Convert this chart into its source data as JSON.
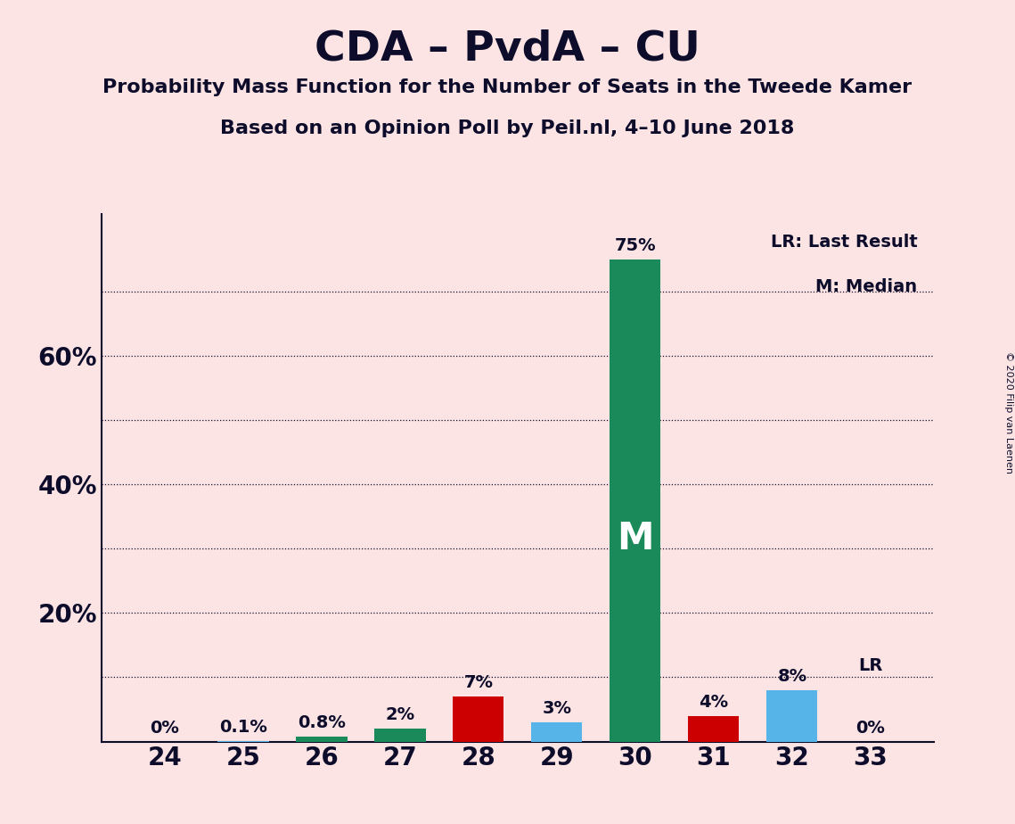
{
  "title": "CDA – PvdA – CU",
  "subtitle1": "Probability Mass Function for the Number of Seats in the Tweede Kamer",
  "subtitle2": "Based on an Opinion Poll by Peil.nl, 4–10 June 2018",
  "copyright": "© 2020 Filip van Laenen",
  "categories": [
    24,
    25,
    26,
    27,
    28,
    29,
    30,
    31,
    32,
    33
  ],
  "values": [
    0.0,
    0.1,
    0.8,
    2.0,
    7.0,
    3.0,
    75.0,
    4.0,
    8.0,
    0.0
  ],
  "bar_colors": [
    "#cc0000",
    "#56b4e9",
    "#1b8a5a",
    "#1b8a5a",
    "#cc0000",
    "#56b4e9",
    "#1b8a5a",
    "#cc0000",
    "#56b4e9",
    "#56b4e9"
  ],
  "labels": [
    "0%",
    "0.1%",
    "0.8%",
    "2%",
    "7%",
    "3%",
    "75%",
    "4%",
    "8%",
    "0%"
  ],
  "median_bar_index": 6,
  "median_label": "M",
  "lr_bar_index": 9,
  "lr_label": "LR",
  "background_color": "#fce4e4",
  "ylim": [
    0,
    82
  ],
  "legend_lr": "LR: Last Result",
  "legend_m": "M: Median",
  "title_fontsize": 34,
  "subtitle_fontsize": 16,
  "axis_fontsize": 20,
  "bar_width": 0.65,
  "ytick_major": [
    20,
    40,
    60
  ],
  "ytick_all": [
    10,
    20,
    30,
    40,
    50,
    60,
    70
  ],
  "ytick_labels_major": [
    "20%",
    "40%",
    "60%"
  ]
}
